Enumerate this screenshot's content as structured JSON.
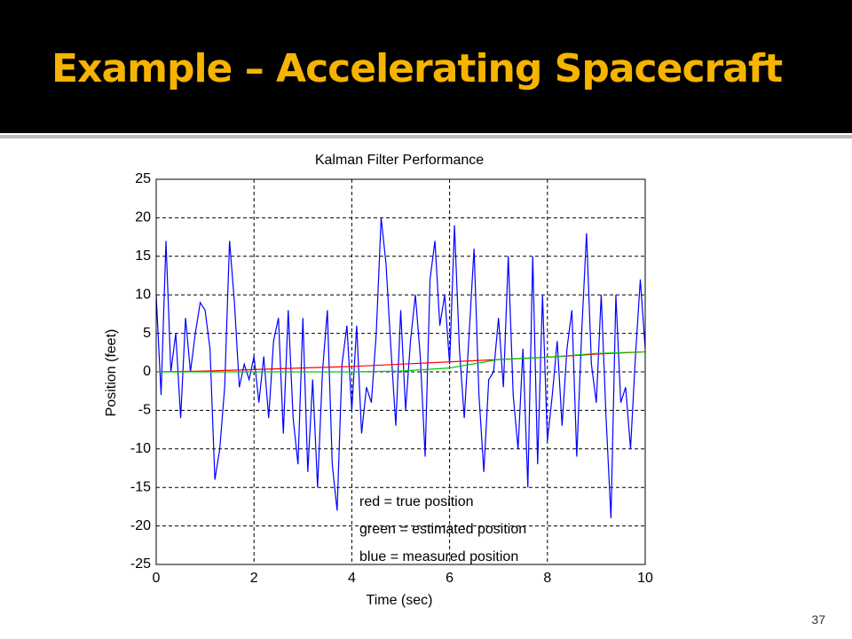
{
  "slide": {
    "title": "Example – Accelerating Spacecraft",
    "page_number": 37
  },
  "chart_data": {
    "type": "line",
    "title": "Kalman Filter Performance",
    "x_label": "Time (sec)",
    "y_label": "Position (feet)",
    "xlim": [
      0,
      10
    ],
    "xticks": [
      0,
      2,
      4,
      6,
      8,
      10
    ],
    "ylim": [
      -25,
      25
    ],
    "yticks": [
      -25,
      -20,
      -15,
      -10,
      -5,
      0,
      5,
      10,
      15,
      20,
      25
    ],
    "grid": true,
    "series": [
      {
        "name": "blue = measured position",
        "color": "#0000ff",
        "x": [
          0,
          0.1,
          0.2,
          0.3,
          0.4,
          0.5,
          0.6,
          0.7,
          0.8,
          0.9,
          1,
          1.1,
          1.2,
          1.3,
          1.4,
          1.5,
          1.6,
          1.7,
          1.8,
          1.9,
          2,
          2.1,
          2.2,
          2.3,
          2.4,
          2.5,
          2.6,
          2.7,
          2.8,
          2.9,
          3,
          3.1,
          3.2,
          3.3,
          3.4,
          3.5,
          3.6,
          3.7,
          3.8,
          3.9,
          4,
          4.1,
          4.2,
          4.3,
          4.4,
          4.5,
          4.6,
          4.7,
          4.8,
          4.9,
          5,
          5.1,
          5.2,
          5.3,
          5.4,
          5.5,
          5.6,
          5.7,
          5.8,
          5.9,
          6,
          6.1,
          6.2,
          6.3,
          6.4,
          6.5,
          6.6,
          6.7,
          6.8,
          6.9,
          7,
          7.1,
          7.2,
          7.3,
          7.4,
          7.5,
          7.6,
          7.7,
          7.8,
          7.9,
          8,
          8.1,
          8.2,
          8.3,
          8.4,
          8.5,
          8.6,
          8.7,
          8.8,
          8.9,
          9,
          9.1,
          9.2,
          9.3,
          9.4,
          9.5,
          9.6,
          9.7,
          9.8,
          9.9,
          10
        ],
        "values": [
          10,
          -3,
          17,
          0,
          5,
          -6,
          7,
          0,
          5,
          9,
          8,
          3,
          -14,
          -10,
          -2,
          17,
          9,
          -2,
          1,
          -1,
          2,
          -4,
          2,
          -6,
          4,
          7,
          -8,
          8,
          -6,
          -12,
          7,
          -13,
          -1,
          -15,
          0,
          8,
          -12,
          -18,
          1,
          6,
          -5,
          6,
          -8,
          -2,
          -4,
          5,
          20,
          14,
          3,
          -7,
          8,
          -5,
          4,
          10,
          2,
          -11,
          12,
          17,
          6,
          10,
          1,
          19,
          3,
          -6,
          5,
          16,
          -3,
          -13,
          -1,
          0,
          7,
          -2,
          15,
          -3,
          -10,
          3,
          -15,
          15,
          -12,
          10,
          -9,
          -3,
          4,
          -7,
          3,
          8,
          -11,
          5,
          18,
          1,
          -4,
          10,
          -6,
          -19,
          10,
          -4,
          -2,
          -10,
          2,
          12,
          3
        ]
      },
      {
        "name": "red = true position",
        "color": "#ff0000",
        "x": [
          0,
          1,
          2,
          3,
          4,
          5,
          6,
          7,
          8,
          9,
          10
        ],
        "values": [
          0,
          0.1,
          0.3,
          0.5,
          0.7,
          1.0,
          1.3,
          1.6,
          1.9,
          2.3,
          2.6
        ]
      },
      {
        "name": "green = estimated position",
        "color": "#00cc00",
        "x": [
          0,
          1,
          2,
          3,
          4,
          5,
          6,
          7,
          8,
          9,
          10
        ],
        "values": [
          0,
          0,
          0,
          0,
          0,
          0.1,
          0.5,
          1.6,
          1.9,
          2.4,
          2.6
        ]
      }
    ]
  }
}
